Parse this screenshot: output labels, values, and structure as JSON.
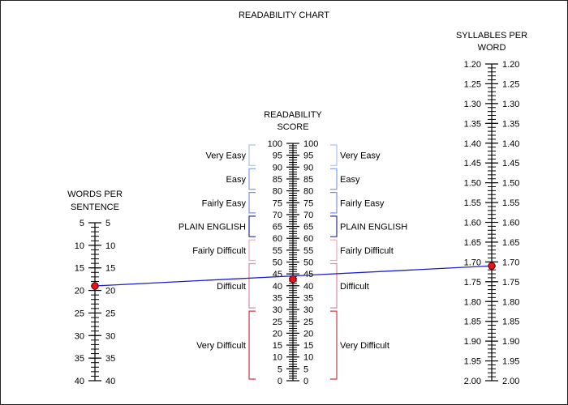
{
  "chart_data": {
    "type": "nomogram",
    "title": "READABILITY CHART",
    "scales": [
      {
        "id": "words",
        "label_lines": [
          "WORDS PER",
          "SENTENCE"
        ],
        "min": 5,
        "max": 40,
        "major": [
          5,
          10,
          15,
          20,
          25,
          30,
          35,
          40
        ],
        "minor_step": 1
      },
      {
        "id": "score",
        "label_lines": [
          "READABILITY",
          "SCORE"
        ],
        "min": 0,
        "max": 100,
        "major": [
          0,
          5,
          10,
          15,
          20,
          25,
          30,
          35,
          40,
          45,
          50,
          55,
          60,
          65,
          70,
          75,
          80,
          85,
          90,
          95,
          100
        ],
        "minor_step": 1,
        "bands": [
          {
            "label": "Very Easy",
            "from": 90,
            "to": 100,
            "color": "#a9c2ee"
          },
          {
            "label": "Easy",
            "from": 80,
            "to": 90,
            "color": "#7e9ee8"
          },
          {
            "label": "Fairly Easy",
            "from": 70,
            "to": 80,
            "color": "#7d92dd"
          },
          {
            "label": "PLAIN ENGLISH",
            "from": 60,
            "to": 70,
            "color": "#2b2d8c"
          },
          {
            "label": "Fairly Difficult",
            "from": 50,
            "to": 60,
            "color": "#e8a9bd"
          },
          {
            "label": "Difficult",
            "from": 30,
            "to": 50,
            "color": "#d98aa0"
          },
          {
            "label": "Very Difficult",
            "from": 0,
            "to": 30,
            "color": "#c83b47"
          }
        ]
      },
      {
        "id": "syllables",
        "label_lines": [
          "SYLLABLES PER",
          "WORD"
        ],
        "min": 1.2,
        "max": 2.0,
        "major": [
          "1.20",
          "1.25",
          "1.30",
          "1.35",
          "1.40",
          "1.45",
          "1.50",
          "1.55",
          "1.60",
          "1.65",
          "1.70",
          "1.75",
          "1.80",
          "1.85",
          "1.90",
          "1.95",
          "2.00"
        ],
        "minor_step": 0.01
      }
    ],
    "reading": {
      "words_per_sentence": 19,
      "syllables_per_word": 1.71,
      "readability_score": 42.8,
      "line_color": "#1c1ccc",
      "marker_color": "#e8121b"
    }
  }
}
